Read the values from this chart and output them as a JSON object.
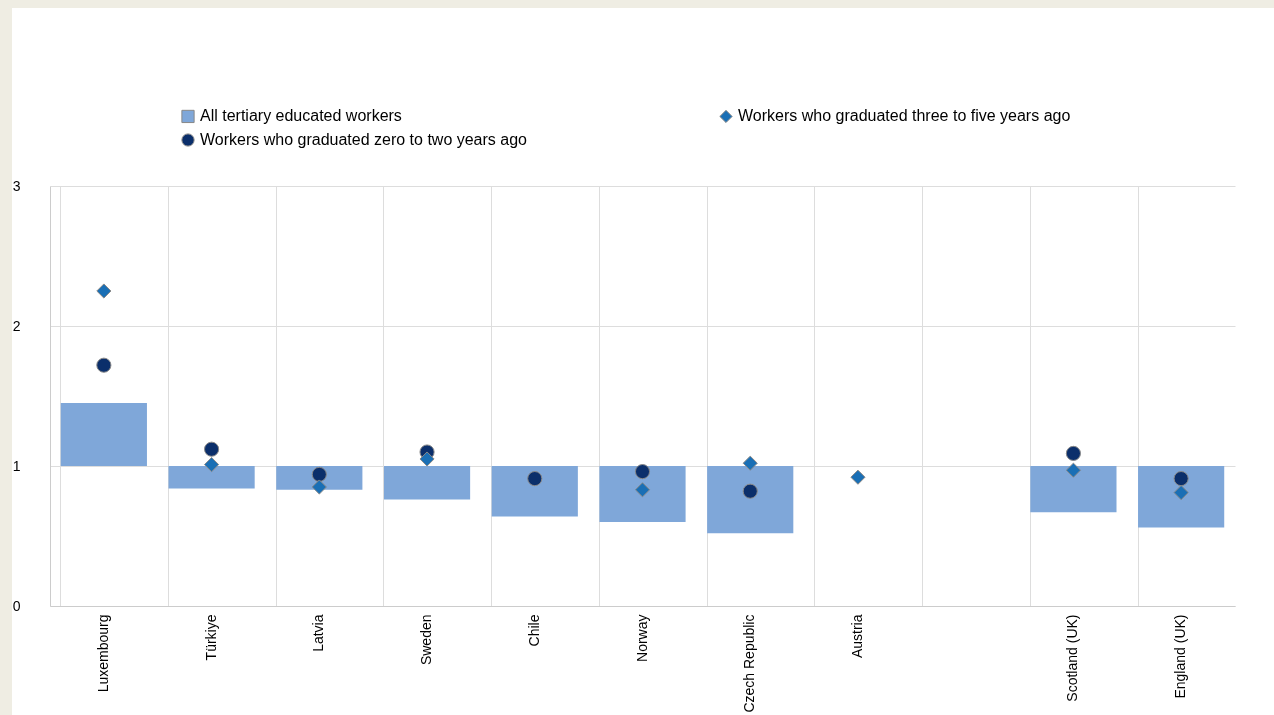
{
  "chart_data": {
    "type": "bar",
    "categories": [
      "Luxembourg",
      "Türkiye",
      "Latvia",
      "Sweden",
      "Chile",
      "Norway",
      "Czech Republic",
      "Austria",
      null,
      "Scotland (UK)",
      "England (UK)"
    ],
    "series": [
      {
        "name": "All tertiary educated workers",
        "type": "bar",
        "color": "#7fa7d9",
        "base": [
          1,
          1,
          1,
          1,
          1,
          1,
          1,
          null,
          null,
          1,
          1
        ],
        "values": [
          0.45,
          -0.16,
          -0.17,
          -0.24,
          -0.36,
          -0.4,
          -0.48,
          null,
          null,
          -0.33,
          -0.44
        ]
      },
      {
        "name": "Workers who graduated zero to two years ago",
        "type": "scatter",
        "marker": "circle",
        "color": "#0b2f6b",
        "values": [
          1.72,
          1.12,
          0.94,
          1.1,
          0.91,
          0.96,
          0.82,
          null,
          null,
          1.09,
          0.91
        ]
      },
      {
        "name": "Workers who graduated three to five years ago",
        "type": "scatter",
        "marker": "diamond",
        "color": "#1a6fb5",
        "values": [
          2.25,
          1.01,
          0.85,
          1.05,
          null,
          0.83,
          1.02,
          0.92,
          null,
          0.97,
          0.81
        ]
      }
    ],
    "ylim": [
      0,
      3
    ],
    "yticks": [
      0,
      1,
      2,
      3
    ],
    "grid": true,
    "legend": "top"
  }
}
